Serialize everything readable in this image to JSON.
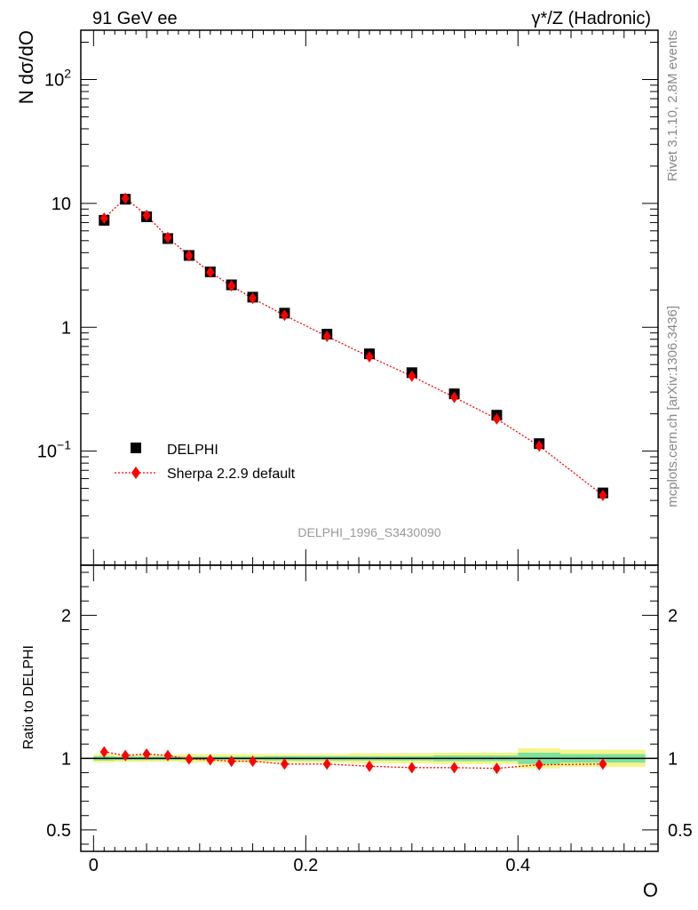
{
  "header": {
    "left": "91 GeV ee",
    "right": "γ*/Z (Hadronic)"
  },
  "side_text": {
    "rivet": "Rivet 3.1.10,  2.8M events",
    "mcplots": "mcplots.cern.ch [arXiv:1306.3436]"
  },
  "watermark": "DELPHI_1996_S3430090",
  "legend": {
    "data_label": "DELPHI",
    "mc_label": "Sherpa 2.2.9 default"
  },
  "colors": {
    "data": "#000000",
    "mc": "#ff0000",
    "band_inner": "#7fe0a0",
    "band_outer": "#f5f58a",
    "side_text": "#888888"
  },
  "chart_data": [
    {
      "type": "scatter",
      "panel": "main",
      "ylabel": "N dσ/dO",
      "yscale": "log",
      "ylim": [
        0.012,
        250
      ],
      "xlim": [
        -0.012,
        0.532
      ],
      "yticks": [
        {
          "value": 0.1,
          "label": "10",
          "sup": "−1"
        },
        {
          "value": 1,
          "label": "1",
          "sup": ""
        },
        {
          "value": 10,
          "label": "10",
          "sup": ""
        },
        {
          "value": 100,
          "label": "10",
          "sup": "2"
        }
      ],
      "series": [
        {
          "name": "DELPHI",
          "marker": "square",
          "x": [
            0.01,
            0.03,
            0.05,
            0.07,
            0.09,
            0.11,
            0.13,
            0.15,
            0.18,
            0.22,
            0.26,
            0.3,
            0.34,
            0.38,
            0.42,
            0.48
          ],
          "y": [
            7.3,
            10.8,
            7.8,
            5.2,
            3.8,
            2.8,
            2.2,
            1.75,
            1.3,
            0.88,
            0.61,
            0.43,
            0.29,
            0.195,
            0.115,
            0.046
          ]
        },
        {
          "name": "Sherpa 2.2.9 default",
          "marker": "diamond",
          "line": "dotted",
          "x": [
            0.01,
            0.03,
            0.05,
            0.07,
            0.09,
            0.11,
            0.13,
            0.15,
            0.18,
            0.22,
            0.26,
            0.3,
            0.34,
            0.38,
            0.42,
            0.48
          ],
          "y": [
            7.6,
            11.0,
            8.0,
            5.3,
            3.78,
            2.78,
            2.16,
            1.71,
            1.25,
            0.845,
            0.578,
            0.403,
            0.272,
            0.182,
            0.11,
            0.044
          ]
        }
      ]
    },
    {
      "type": "scatter",
      "panel": "ratio",
      "ylabel": "Ratio to DELPHI",
      "xlabel": "O",
      "ylim": [
        0.35,
        2.35
      ],
      "xlim": [
        -0.012,
        0.532
      ],
      "yticks": [
        {
          "value": 0.5,
          "label": "0.5"
        },
        {
          "value": 1,
          "label": "1"
        },
        {
          "value": 2,
          "label": "2"
        }
      ],
      "xticks": [
        {
          "value": 0,
          "label": "0"
        },
        {
          "value": 0.2,
          "label": "0.2"
        },
        {
          "value": 0.4,
          "label": "0.4"
        }
      ],
      "band": [
        {
          "x0": 0.0,
          "x1": 0.02,
          "inner": 0.015,
          "outer": 0.03
        },
        {
          "x0": 0.02,
          "x1": 0.04,
          "inner": 0.012,
          "outer": 0.025
        },
        {
          "x0": 0.04,
          "x1": 0.06,
          "inner": 0.012,
          "outer": 0.025
        },
        {
          "x0": 0.06,
          "x1": 0.08,
          "inner": 0.012,
          "outer": 0.025
        },
        {
          "x0": 0.08,
          "x1": 0.1,
          "inner": 0.012,
          "outer": 0.03
        },
        {
          "x0": 0.1,
          "x1": 0.12,
          "inner": 0.012,
          "outer": 0.03
        },
        {
          "x0": 0.12,
          "x1": 0.14,
          "inner": 0.012,
          "outer": 0.03
        },
        {
          "x0": 0.14,
          "x1": 0.16,
          "inner": 0.012,
          "outer": 0.03
        },
        {
          "x0": 0.16,
          "x1": 0.2,
          "inner": 0.015,
          "outer": 0.03
        },
        {
          "x0": 0.2,
          "x1": 0.24,
          "inner": 0.015,
          "outer": 0.03
        },
        {
          "x0": 0.24,
          "x1": 0.28,
          "inner": 0.015,
          "outer": 0.035
        },
        {
          "x0": 0.28,
          "x1": 0.32,
          "inner": 0.015,
          "outer": 0.035
        },
        {
          "x0": 0.32,
          "x1": 0.36,
          "inner": 0.02,
          "outer": 0.04
        },
        {
          "x0": 0.36,
          "x1": 0.4,
          "inner": 0.02,
          "outer": 0.04
        },
        {
          "x0": 0.4,
          "x1": 0.44,
          "inner": 0.04,
          "outer": 0.07
        },
        {
          "x0": 0.44,
          "x1": 0.52,
          "inner": 0.03,
          "outer": 0.06
        }
      ],
      "series": [
        {
          "name": "Sherpa 2.2.9 default",
          "marker": "diamond",
          "line": "dotted",
          "x": [
            0.01,
            0.03,
            0.05,
            0.07,
            0.09,
            0.11,
            0.13,
            0.15,
            0.18,
            0.22,
            0.26,
            0.3,
            0.34,
            0.38,
            0.42,
            0.48
          ],
          "y": [
            1.045,
            1.02,
            1.03,
            1.02,
            0.995,
            0.99,
            0.98,
            0.98,
            0.96,
            0.96,
            0.945,
            0.935,
            0.935,
            0.93,
            0.955,
            0.96
          ]
        }
      ]
    }
  ]
}
